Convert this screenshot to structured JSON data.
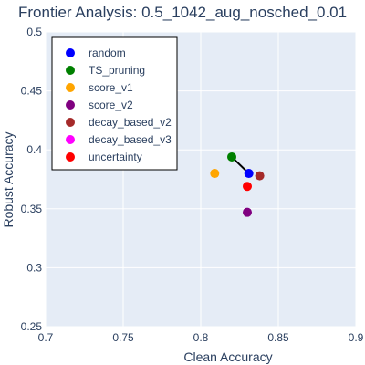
{
  "chart_data": {
    "type": "scatter",
    "title": "Frontier Analysis: 0.5_1042_aug_nosched_0.01",
    "xlabel": "Clean Accuracy",
    "ylabel": "Robust Accuracy",
    "xlim": [
      0.7,
      0.9
    ],
    "ylim": [
      0.25,
      0.5
    ],
    "xticks": [
      0.7,
      0.75,
      0.8,
      0.85,
      0.9
    ],
    "yticks": [
      0.25,
      0.3,
      0.35,
      0.4,
      0.45,
      0.5
    ],
    "grid": true,
    "legend_position": "top-left",
    "series": [
      {
        "name": "random",
        "color": "#0000ff",
        "x": [
          0.831
        ],
        "y": [
          0.38
        ]
      },
      {
        "name": "TS_pruning",
        "color": "#008000",
        "x": [
          0.82
        ],
        "y": [
          0.394
        ]
      },
      {
        "name": "score_v1",
        "color": "#ffa500",
        "x": [
          0.809
        ],
        "y": [
          0.38
        ]
      },
      {
        "name": "score_v2",
        "color": "#800080",
        "x": [
          0.83
        ],
        "y": [
          0.347
        ]
      },
      {
        "name": "decay_based_v2",
        "color": "#a52a2a",
        "x": [
          0.838
        ],
        "y": [
          0.378
        ]
      },
      {
        "name": "decay_based_v3",
        "color": "#ff00ff",
        "x": [],
        "y": []
      },
      {
        "name": "uncertainty",
        "color": "#ff0000",
        "x": [
          0.83
        ],
        "y": [
          0.369
        ]
      }
    ],
    "frontier_line": {
      "color": "#000000",
      "x": [
        0.82,
        0.831
      ],
      "y": [
        0.394,
        0.38
      ]
    }
  },
  "colors": {
    "plot_background": "#e5ecf6",
    "grid": "#ffffff",
    "text": "#2a3f5f"
  }
}
